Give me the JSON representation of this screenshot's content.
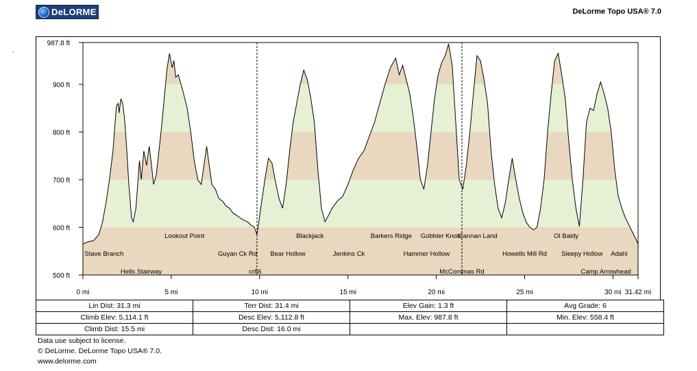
{
  "header": {
    "logo_text": "DeLORME",
    "app_title": "DeLorme Topo USA® 7.0",
    "stray_mark": "."
  },
  "chart_data": {
    "type": "area",
    "title": "",
    "xlabel": "",
    "ylabel": "",
    "xlim": [
      0,
      31.42
    ],
    "ylim": [
      500,
      987.8
    ],
    "x_ticks": [
      {
        "value": 0,
        "label": "0 mi"
      },
      {
        "value": 5,
        "label": "5 mi"
      },
      {
        "value": 10,
        "label": "10 mi"
      },
      {
        "value": 15,
        "label": "15 mi"
      },
      {
        "value": 20,
        "label": "20 mi"
      },
      {
        "value": 25,
        "label": "25 mi"
      },
      {
        "value": 30,
        "label": "30 mi"
      },
      {
        "value": 31.42,
        "label": "31.42 mi"
      }
    ],
    "y_ticks": [
      {
        "value": 500,
        "label": "500 ft"
      },
      {
        "value": 600,
        "label": "600 ft"
      },
      {
        "value": 700,
        "label": "700 ft"
      },
      {
        "value": 800,
        "label": "800 ft"
      },
      {
        "value": 900,
        "label": "900 ft"
      },
      {
        "value": 987.8,
        "label": "987.8 ft"
      }
    ],
    "elevation_bands": [
      {
        "from": 500,
        "to": 600,
        "color": "#e9d8bf"
      },
      {
        "from": 600,
        "to": 700,
        "color": "#e6f0d5"
      },
      {
        "from": 700,
        "to": 800,
        "color": "#e9d8bf"
      },
      {
        "from": 800,
        "to": 900,
        "color": "#e6f0d5"
      },
      {
        "from": 900,
        "to": 987.8,
        "color": "#e9d8bf"
      }
    ],
    "line_color": "#000000",
    "dashed_markers_mi": [
      9.85,
      21.45
    ],
    "series": [
      {
        "x": [
          0,
          0.3,
          0.6,
          0.9,
          1.1,
          1.3,
          1.5,
          1.7,
          1.8,
          1.9,
          2.0,
          2.05,
          2.15,
          2.25,
          2.35,
          2.45,
          2.6,
          2.75,
          2.85,
          3.0,
          3.1,
          3.2,
          3.3,
          3.45,
          3.6,
          3.75,
          3.85,
          4.0,
          4.15,
          4.3,
          4.45,
          4.6,
          4.75,
          4.9,
          5.05,
          5.15,
          5.25,
          5.4,
          5.55,
          5.7,
          5.9,
          6.1,
          6.3,
          6.5,
          6.7,
          6.85,
          7.0,
          7.15,
          7.3,
          7.5,
          7.7,
          7.9,
          8.1,
          8.3,
          8.5,
          8.7,
          8.9,
          9.1,
          9.3,
          9.5,
          9.7,
          9.85,
          9.95,
          10.1,
          10.3,
          10.5,
          10.7,
          10.9,
          11.1,
          11.3,
          11.5,
          11.7,
          11.9,
          12.1,
          12.3,
          12.5,
          12.7,
          12.9,
          13.1,
          13.3,
          13.5,
          13.7,
          13.9,
          14.1,
          14.4,
          14.7,
          15.0,
          15.3,
          15.6,
          15.9,
          16.2,
          16.5,
          16.8,
          17.1,
          17.4,
          17.7,
          17.9,
          18.1,
          18.3,
          18.5,
          18.7,
          18.9,
          19.1,
          19.3,
          19.5,
          19.7,
          19.9,
          20.1,
          20.3,
          20.5,
          20.7,
          20.9,
          21.1,
          21.3,
          21.5,
          21.7,
          21.9,
          22.1,
          22.3,
          22.5,
          22.7,
          22.9,
          23.1,
          23.3,
          23.5,
          23.7,
          23.9,
          24.1,
          24.3,
          24.5,
          24.7,
          24.9,
          25.1,
          25.3,
          25.5,
          25.7,
          25.9,
          26.1,
          26.3,
          26.5,
          26.7,
          26.9,
          27.1,
          27.3,
          27.5,
          27.7,
          27.9,
          28.1,
          28.3,
          28.5,
          28.7,
          28.9,
          29.1,
          29.3,
          29.5,
          29.7,
          29.9,
          30.1,
          30.3,
          30.5,
          30.7,
          30.9,
          31.1,
          31.3,
          31.42
        ],
        "y": [
          565,
          570,
          572,
          585,
          610,
          650,
          700,
          760,
          810,
          855,
          860,
          840,
          870,
          860,
          830,
          780,
          690,
          620,
          612,
          640,
          690,
          740,
          700,
          760,
          730,
          770,
          740,
          690,
          710,
          760,
          810,
          870,
          930,
          965,
          935,
          950,
          915,
          920,
          900,
          880,
          850,
          800,
          740,
          700,
          690,
          730,
          770,
          730,
          690,
          680,
          660,
          655,
          645,
          640,
          630,
          625,
          620,
          615,
          612,
          605,
          600,
          585,
          610,
          650,
          700,
          745,
          735,
          695,
          660,
          640,
          690,
          760,
          820,
          860,
          900,
          930,
          910,
          870,
          820,
          720,
          640,
          612,
          625,
          640,
          655,
          665,
          690,
          720,
          745,
          760,
          790,
          820,
          860,
          900,
          935,
          955,
          920,
          940,
          910,
          880,
          830,
          770,
          700,
          680,
          730,
          800,
          870,
          920,
          945,
          960,
          985,
          940,
          820,
          700,
          680,
          730,
          800,
          880,
          960,
          950,
          910,
          860,
          760,
          690,
          640,
          620,
          650,
          700,
          745,
          700,
          660,
          630,
          610,
          600,
          595,
          600,
          640,
          700,
          800,
          880,
          950,
          965,
          920,
          870,
          780,
          700,
          640,
          602,
          700,
          820,
          850,
          845,
          880,
          905,
          880,
          850,
          800,
          720,
          665,
          640,
          620,
          605,
          590,
          575,
          565
        ]
      }
    ],
    "labels_row1": [
      {
        "x": 5.75,
        "text": "Lookout Point"
      },
      {
        "x": 12.85,
        "text": "Blackjack"
      },
      {
        "x": 17.45,
        "text": "Barkers Ridge"
      },
      {
        "x": 20.25,
        "text": "Gobbler Knob"
      },
      {
        "x": 22.35,
        "text": "Cannan Land"
      },
      {
        "x": 27.35,
        "text": "Ol Baldy"
      }
    ],
    "labels_row2": [
      {
        "x": 1.2,
        "text": "Stave Branch"
      },
      {
        "x": 8.75,
        "text": "Guyan Ck Rd"
      },
      {
        "x": 11.6,
        "text": "Bear Hollow"
      },
      {
        "x": 15.05,
        "text": "Jenkins Ck"
      },
      {
        "x": 19.45,
        "text": "Hammer Hollow"
      },
      {
        "x": 25.0,
        "text": "Howells Mill Rd"
      },
      {
        "x": 28.25,
        "text": "Sleepy Hollow"
      },
      {
        "x": 30.35,
        "text": "Adahi"
      }
    ],
    "labels_row3": [
      {
        "x": 3.3,
        "text": "Hells Stairway"
      },
      {
        "x": 9.75,
        "text": "cr86"
      },
      {
        "x": 21.45,
        "text": "McCommas Rd"
      },
      {
        "x": 29.6,
        "text": "Camp Arrowhead"
      }
    ]
  },
  "stats": {
    "rows": [
      [
        {
          "label": "Lin Dist:",
          "value": "31.3 mi"
        },
        {
          "label": "Terr Dist:",
          "value": "31.4 mi"
        },
        {
          "label": "Elev Gain:",
          "value": "1.3 ft"
        },
        {
          "label": "Avg Grade:",
          "value": "6"
        }
      ],
      [
        {
          "label": "Climb Elev:",
          "value": "5,114.1 ft"
        },
        {
          "label": "Desc Elev:",
          "value": "5,112.8 ft"
        },
        {
          "label": "Max. Elev:",
          "value": "987.8 ft"
        },
        {
          "label": "Min. Elev:",
          "value": "558.4 ft"
        }
      ],
      [
        {
          "label": "Climb Dist:",
          "value": "15.5 mi"
        },
        {
          "label": "Desc Dist:",
          "value": "16.0 mi"
        },
        {
          "label": "",
          "value": ""
        },
        {
          "label": "",
          "value": ""
        }
      ]
    ]
  },
  "footer": {
    "line1": "Data use subject to license.",
    "line2": "© DeLorme. DeLorme Topo USA® 7.0.",
    "line3": "www.delorme.com"
  }
}
